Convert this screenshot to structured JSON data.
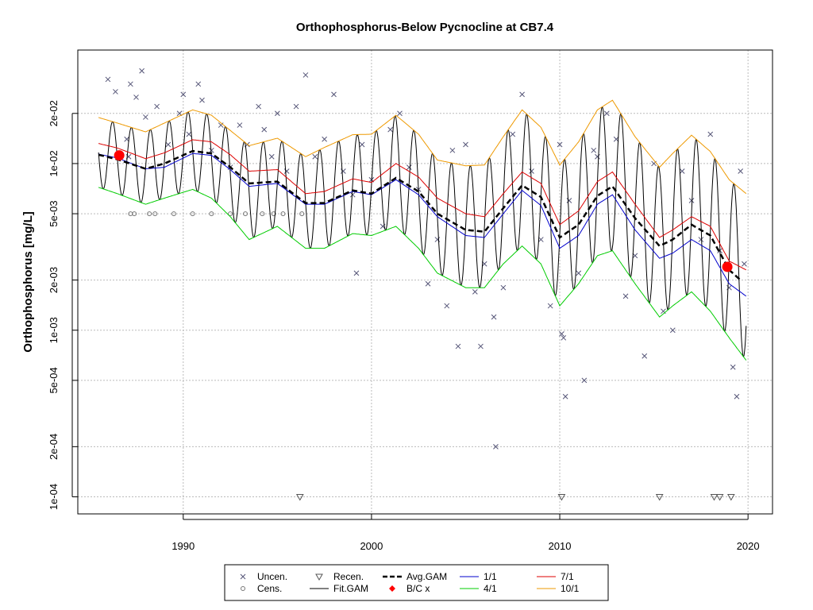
{
  "chart_data": {
    "type": "line",
    "title": "Orthophosphorus-Below Pycnocline at CB7.4",
    "ylabel": "Orthophosphorus [mg/L]",
    "xlabel": "",
    "y_scale": "log",
    "xlim": [
      1984.4,
      2021.3
    ],
    "ylim": [
      7.9e-05,
      0.048
    ],
    "x_ticks": [
      1990,
      2000,
      2010,
      2020
    ],
    "y_ticks": [
      {
        "value": 0.0001,
        "label": "1e-04"
      },
      {
        "value": 0.0002,
        "label": "2e-04"
      },
      {
        "value": 0.0005,
        "label": "5e-04"
      },
      {
        "value": 0.001,
        "label": "1e-03"
      },
      {
        "value": 0.002,
        "label": "2e-03"
      },
      {
        "value": 0.005,
        "label": "5e-03"
      },
      {
        "value": 0.01,
        "label": "1e-02"
      },
      {
        "value": 0.02,
        "label": "2e-02"
      }
    ],
    "grid": true,
    "legend_position": "bottom",
    "colors": {
      "avg_gam": "#000000",
      "fit_gam": "#000000",
      "jan": "#0000cc",
      "apr": "#00cc00",
      "jul": "#dd0000",
      "oct": "#ee9900",
      "bc": "#ff0000",
      "points": "#555577"
    },
    "legend": [
      {
        "key": "uncen",
        "label": "Uncen."
      },
      {
        "key": "cens",
        "label": "Cens."
      },
      {
        "key": "recen",
        "label": "Recen."
      },
      {
        "key": "fitgam",
        "label": "Fit.GAM"
      },
      {
        "key": "avggam",
        "label": "Avg.GAM"
      },
      {
        "key": "bc",
        "label": "B/C x"
      },
      {
        "key": "jan",
        "label": "1/1"
      },
      {
        "key": "apr",
        "label": "4/1"
      },
      {
        "key": "jul",
        "label": "7/1"
      },
      {
        "key": "oct",
        "label": "10/1"
      }
    ],
    "series": [
      {
        "name": "Avg.GAM",
        "x": [
          1985.5,
          1986.5,
          1988,
          1989,
          1990.5,
          1991.5,
          1992.5,
          1993.5,
          1995,
          1996.5,
          1997.5,
          1999,
          2000,
          2001.3,
          2002.5,
          2003.5,
          2005,
          2006,
          2007,
          2008,
          2009,
          2010,
          2011,
          2012,
          2012.8,
          2014,
          2015.3,
          2016,
          2017,
          2018,
          2019,
          2019.6
        ],
        "values": [
          0.0113,
          0.0106,
          0.0093,
          0.01,
          0.0119,
          0.0115,
          0.0095,
          0.0076,
          0.0078,
          0.0058,
          0.0058,
          0.0069,
          0.0066,
          0.0082,
          0.0068,
          0.005,
          0.004,
          0.0039,
          0.0054,
          0.0074,
          0.0063,
          0.0036,
          0.0043,
          0.0064,
          0.0073,
          0.0047,
          0.0032,
          0.0035,
          0.0043,
          0.0037,
          0.0023,
          0.002
        ]
      },
      {
        "name": "1/1",
        "x": [
          1985.5,
          1986.5,
          1988,
          1989,
          1990.5,
          1991.5,
          1992.5,
          1993.5,
          1995,
          1996.5,
          1997.5,
          1999,
          2000,
          2001.3,
          2002.5,
          2003.5,
          2005,
          2006,
          2007,
          2008,
          2009,
          2010,
          2011,
          2012,
          2012.8,
          2014,
          2015.3,
          2016,
          2017,
          2018,
          2019,
          2019.9
        ],
        "values": [
          0.0114,
          0.0108,
          0.0093,
          0.0095,
          0.0115,
          0.0112,
          0.0092,
          0.0073,
          0.0076,
          0.0057,
          0.0057,
          0.0068,
          0.0065,
          0.008,
          0.0065,
          0.0048,
          0.0037,
          0.0036,
          0.005,
          0.0069,
          0.0056,
          0.0031,
          0.0037,
          0.0057,
          0.0065,
          0.004,
          0.0027,
          0.0029,
          0.0035,
          0.003,
          0.0019,
          0.0016
        ]
      },
      {
        "name": "4/1",
        "x": [
          1985.5,
          1986.5,
          1988,
          1989,
          1990.5,
          1991.5,
          1992.5,
          1993.5,
          1995,
          1996.5,
          1997.5,
          1999,
          2000,
          2001.3,
          2002.5,
          2003.5,
          2005,
          2006,
          2007,
          2008,
          2009,
          2010,
          2011,
          2012,
          2012.8,
          2014,
          2015.3,
          2016,
          2017,
          2018,
          2019,
          2019.9
        ],
        "values": [
          0.0072,
          0.0066,
          0.0057,
          0.0062,
          0.007,
          0.0062,
          0.0048,
          0.0035,
          0.0042,
          0.0031,
          0.0031,
          0.0038,
          0.0037,
          0.0042,
          0.0031,
          0.0022,
          0.0018,
          0.0018,
          0.0025,
          0.0032,
          0.0025,
          0.0014,
          0.0019,
          0.0028,
          0.003,
          0.0019,
          0.0012,
          0.0014,
          0.0017,
          0.0013,
          0.0009,
          0.00066
        ]
      },
      {
        "name": "7/1",
        "x": [
          1985.5,
          1986.5,
          1988,
          1989,
          1990.5,
          1991.5,
          1992.5,
          1993.5,
          1995,
          1996.5,
          1997.5,
          1999,
          2000,
          2001.3,
          2002.5,
          2003.5,
          2005,
          2006,
          2007,
          2008,
          2009,
          2010,
          2011,
          2012,
          2012.8,
          2014,
          2015.3,
          2016,
          2017,
          2018,
          2019,
          2019.9
        ],
        "values": [
          0.0132,
          0.0124,
          0.0107,
          0.0116,
          0.0139,
          0.0135,
          0.0113,
          0.009,
          0.0092,
          0.0066,
          0.0068,
          0.0081,
          0.0077,
          0.01,
          0.0083,
          0.0062,
          0.005,
          0.0048,
          0.0066,
          0.0089,
          0.0076,
          0.0043,
          0.0052,
          0.0078,
          0.0089,
          0.0057,
          0.0036,
          0.004,
          0.0048,
          0.0042,
          0.0026,
          0.0023
        ]
      },
      {
        "name": "10/1",
        "x": [
          1985.5,
          1986.5,
          1988,
          1989,
          1990.5,
          1991.5,
          1992.5,
          1993.5,
          1995,
          1996.5,
          1997.5,
          1999,
          2000,
          2001.3,
          2002.5,
          2003.5,
          2005,
          2006,
          2007,
          2008,
          2009,
          2010,
          2011,
          2012,
          2012.8,
          2014,
          2015.3,
          2016,
          2017,
          2018,
          2019,
          2019.9
        ],
        "values": [
          0.0189,
          0.0175,
          0.0155,
          0.0175,
          0.021,
          0.0195,
          0.0158,
          0.0128,
          0.0142,
          0.011,
          0.0125,
          0.0149,
          0.015,
          0.0195,
          0.015,
          0.0105,
          0.0097,
          0.0098,
          0.0145,
          0.021,
          0.0165,
          0.0098,
          0.0135,
          0.021,
          0.024,
          0.0145,
          0.0095,
          0.0115,
          0.0148,
          0.0118,
          0.008,
          0.0066
        ]
      },
      {
        "name": "B/C x",
        "x": [
          1986.6,
          2018.9
        ],
        "values": [
          0.0112,
          0.0024
        ]
      }
    ],
    "uncensored_points": [
      [
        1986,
        0.032
      ],
      [
        1986.4,
        0.027
      ],
      [
        1987,
        0.014
      ],
      [
        1987.1,
        0.011
      ],
      [
        1987.5,
        0.025
      ],
      [
        1987.8,
        0.036
      ],
      [
        1987.2,
        0.03
      ],
      [
        1988,
        0.019
      ],
      [
        1988.6,
        0.022
      ],
      [
        1989.2,
        0.013
      ],
      [
        1989.8,
        0.02
      ],
      [
        1990,
        0.026
      ],
      [
        1990.3,
        0.015
      ],
      [
        1990.8,
        0.03
      ],
      [
        1991,
        0.024
      ],
      [
        1991.5,
        0.012
      ],
      [
        1992,
        0.017
      ],
      [
        1992.5,
        0.0095
      ],
      [
        1993,
        0.017
      ],
      [
        1993.4,
        0.013
      ],
      [
        1994,
        0.022
      ],
      [
        1994.3,
        0.016
      ],
      [
        1994.7,
        0.011
      ],
      [
        1995,
        0.02
      ],
      [
        1995.5,
        0.009
      ],
      [
        1996,
        0.022
      ],
      [
        1996.5,
        0.034
      ],
      [
        1997,
        0.011
      ],
      [
        1997.5,
        0.014
      ],
      [
        1998,
        0.026
      ],
      [
        1998.5,
        0.009
      ],
      [
        1999.2,
        0.0022
      ],
      [
        1999,
        0.0065
      ],
      [
        1999.5,
        0.013
      ],
      [
        2000,
        0.008
      ],
      [
        2000.6,
        0.0042
      ],
      [
        2001,
        0.016
      ],
      [
        2001.5,
        0.02
      ],
      [
        2002,
        0.0095
      ],
      [
        2002.5,
        0.007
      ],
      [
        2003,
        0.0019
      ],
      [
        2003.5,
        0.0035
      ],
      [
        2004,
        0.0014
      ],
      [
        2004.3,
        0.012
      ],
      [
        2004.6,
        0.0008
      ],
      [
        2005,
        0.013
      ],
      [
        2005.5,
        0.0017
      ],
      [
        2005.8,
        0.0008
      ],
      [
        2006,
        0.0025
      ],
      [
        2006.5,
        0.0012
      ],
      [
        2006.6,
        0.0002
      ],
      [
        2007,
        0.0018
      ],
      [
        2007.5,
        0.015
      ],
      [
        2008,
        0.026
      ],
      [
        2008.5,
        0.009
      ],
      [
        2009,
        0.0035
      ],
      [
        2009.5,
        0.0014
      ],
      [
        2010,
        0.013
      ],
      [
        2010.1,
        0.00095
      ],
      [
        2010.2,
        0.0009
      ],
      [
        2010.3,
        0.0004
      ],
      [
        2010.5,
        0.006
      ],
      [
        2011,
        0.0022
      ],
      [
        2011.3,
        0.0005
      ],
      [
        2011.8,
        0.012
      ],
      [
        2012,
        0.011
      ],
      [
        2012.5,
        0.02
      ],
      [
        2013,
        0.014
      ],
      [
        2013.5,
        0.0016
      ],
      [
        2014,
        0.0028
      ],
      [
        2014.5,
        0.0007
      ],
      [
        2015,
        0.01
      ],
      [
        2015.5,
        0.0013
      ],
      [
        2016,
        0.001
      ],
      [
        2016.5,
        0.009
      ],
      [
        2017,
        0.006
      ],
      [
        2017.5,
        0.0035
      ],
      [
        2018,
        0.015
      ],
      [
        2018.5,
        0.003
      ],
      [
        2019,
        0.0018
      ],
      [
        2019.2,
        0.0006
      ],
      [
        2019.4,
        0.0004
      ],
      [
        2019.6,
        0.009
      ],
      [
        2019.8,
        0.0025
      ]
    ],
    "censored_points": [
      [
        1987.2,
        0.005
      ],
      [
        1987.4,
        0.005
      ],
      [
        1988.2,
        0.005
      ],
      [
        1988.5,
        0.005
      ],
      [
        1989.5,
        0.005
      ],
      [
        1990.5,
        0.005
      ],
      [
        1991.5,
        0.005
      ],
      [
        1992.5,
        0.005
      ],
      [
        1993.3,
        0.005
      ],
      [
        1994.2,
        0.005
      ],
      [
        1994.8,
        0.005
      ],
      [
        1995.3,
        0.005
      ],
      [
        1996.3,
        0.005
      ]
    ],
    "recensored_points": [
      [
        1996.2,
        0.0001
      ],
      [
        2010.1,
        0.0001
      ],
      [
        2015.3,
        0.0001
      ],
      [
        2018.2,
        0.0001
      ],
      [
        2018.5,
        0.0001
      ],
      [
        2019.1,
        0.0001
      ]
    ]
  }
}
